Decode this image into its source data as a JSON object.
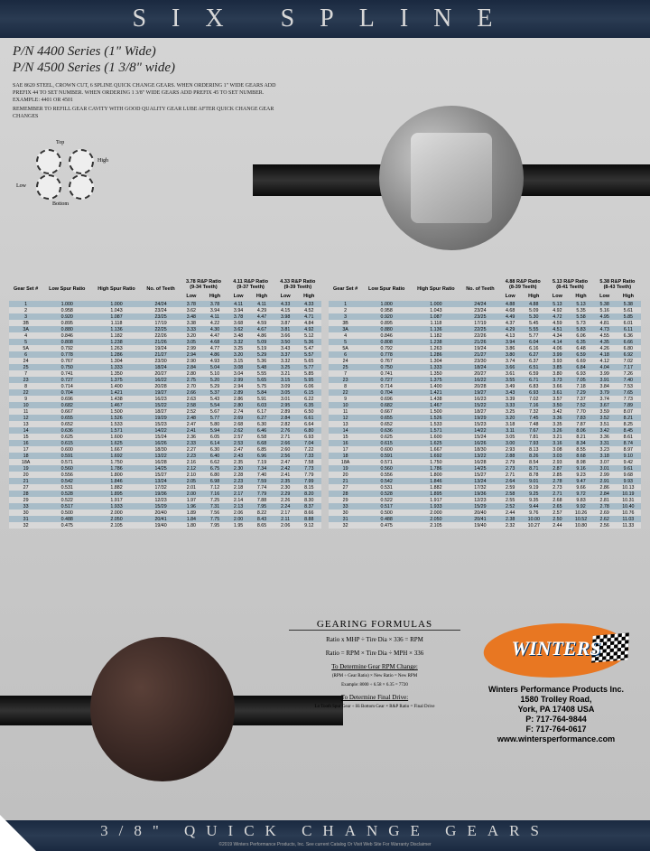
{
  "top_banner": "SIX SPLINE",
  "header": {
    "l1": "P/N 4400 Series (1\" Wide)",
    "l2": "P/N 4500 Series (1 3/8\" wide)"
  },
  "desc": {
    "p1": "SAE 8620 Steel, Crown Cut, 6 Spline Quick Change Gears. When Ordering 1\" Wide Gears Add Prefix 44 To Set Number. When Ordering 1 3/8\" Wide Gears Add Prefix 45 To Set Number. Example: 4401 or 4501",
    "p2": "Remember To Refill Gear Cavity With Good Quality Gear Lube After Quick Change Gear Changes"
  },
  "diag": {
    "top": "Top",
    "bottom": "Bottom",
    "high": "High",
    "low": "Low"
  },
  "left_table": {
    "row_hdrs": [
      "Gear Set #",
      "Low Spur Ratio",
      "High Spur Ratio",
      "No. of Teeth"
    ],
    "ratio_hdrs": [
      {
        "t": "3.78 R&P Ratio",
        "s": "(9-34 Teeth)"
      },
      {
        "t": "4.11 R&P Ratio",
        "s": "(9-37 Teeth)"
      },
      {
        "t": "4.33 R&P Ratio",
        "s": "(9-39 Teeth)"
      }
    ],
    "lh": "Low",
    "hh": "High"
  },
  "right_table": {
    "row_hdrs": [
      "Gear Set #",
      "Low Spur Ratio",
      "High Spur Ratio",
      "No. of Teeth"
    ],
    "ratio_hdrs": [
      {
        "t": "4.88 R&P Ratio",
        "s": "(8-39 Teeth)"
      },
      {
        "t": "5.13 R&P Ratio",
        "s": "(8-41 Teeth)"
      },
      {
        "t": "5.38 R&P Ratio",
        "s": "(8-43 Teeth)"
      }
    ],
    "lh": "Low",
    "hh": "High"
  },
  "rows_left": [
    [
      "1",
      "1.000",
      "1.000",
      "24/24",
      "3.78",
      "3.78",
      "4.11",
      "4.11",
      "4.33",
      "4.33"
    ],
    [
      "2",
      "0.958",
      "1.043",
      "23/24",
      "3.62",
      "3.94",
      "3.94",
      "4.29",
      "4.15",
      "4.52"
    ],
    [
      "3",
      "0.920",
      "1.087",
      "23/25",
      "3.48",
      "4.11",
      "3.78",
      "4.47",
      "3.98",
      "4.71"
    ],
    [
      "3B",
      "0.895",
      "1.118",
      "17/19",
      "3.38",
      "4.22",
      "3.68",
      "4.59",
      "3.87",
      "4.84"
    ],
    [
      "3A",
      "0.880",
      "1.136",
      "22/25",
      "3.33",
      "4.30",
      "3.62",
      "4.67",
      "3.81",
      "4.92"
    ],
    [
      "4",
      "0.846",
      "1.182",
      "22/26",
      "3.20",
      "4.47",
      "3.48",
      "4.86",
      "3.66",
      "5.12"
    ],
    [
      "5",
      "0.808",
      "1.238",
      "21/26",
      "3.05",
      "4.68",
      "3.32",
      "5.09",
      "3.50",
      "5.36"
    ],
    [
      "5A",
      "0.792",
      "1.263",
      "19/24",
      "2.99",
      "4.77",
      "3.25",
      "5.19",
      "3.43",
      "5.47"
    ],
    [
      "6",
      "0.778",
      "1.286",
      "21/27",
      "2.94",
      "4.86",
      "3.20",
      "5.29",
      "3.37",
      "5.57"
    ],
    [
      "24",
      "0.767",
      "1.304",
      "23/30",
      "2.90",
      "4.93",
      "3.15",
      "5.36",
      "3.32",
      "5.65"
    ],
    [
      "25",
      "0.750",
      "1.333",
      "18/24",
      "2.84",
      "5.04",
      "3.08",
      "5.48",
      "3.25",
      "5.77"
    ],
    [
      "7",
      "0.741",
      "1.350",
      "20/27",
      "2.80",
      "5.10",
      "3.04",
      "5.55",
      "3.21",
      "5.85"
    ],
    [
      "23",
      "0.727",
      "1.375",
      "16/22",
      "2.75",
      "5.20",
      "2.99",
      "5.65",
      "3.15",
      "5.95"
    ],
    [
      "8",
      "0.714",
      "1.400",
      "20/28",
      "2.70",
      "5.29",
      "2.94",
      "5.75",
      "3.09",
      "6.06"
    ],
    [
      "22",
      "0.704",
      "1.421",
      "19/27",
      "2.66",
      "5.37",
      "2.89",
      "5.84",
      "3.05",
      "6.15"
    ],
    [
      "9",
      "0.696",
      "1.438",
      "16/23",
      "2.63",
      "5.43",
      "2.86",
      "5.91",
      "3.01",
      "6.22"
    ],
    [
      "10",
      "0.682",
      "1.467",
      "15/22",
      "2.58",
      "5.54",
      "2.80",
      "6.03",
      "2.95",
      "6.35"
    ],
    [
      "11",
      "0.667",
      "1.500",
      "18/27",
      "2.52",
      "5.67",
      "2.74",
      "6.17",
      "2.89",
      "6.50"
    ],
    [
      "12",
      "0.655",
      "1.526",
      "19/29",
      "2.48",
      "5.77",
      "2.69",
      "6.27",
      "2.84",
      "6.61"
    ],
    [
      "13",
      "0.652",
      "1.533",
      "15/23",
      "2.47",
      "5.80",
      "2.68",
      "6.30",
      "2.82",
      "6.64"
    ],
    [
      "14",
      "0.636",
      "1.571",
      "14/22",
      "2.41",
      "5.94",
      "2.62",
      "6.46",
      "2.76",
      "6.80"
    ],
    [
      "15",
      "0.625",
      "1.600",
      "15/24",
      "2.36",
      "6.05",
      "2.57",
      "6.58",
      "2.71",
      "6.93"
    ],
    [
      "16",
      "0.615",
      "1.625",
      "16/26",
      "2.33",
      "6.14",
      "2.53",
      "6.68",
      "2.66",
      "7.04"
    ],
    [
      "17",
      "0.600",
      "1.667",
      "18/30",
      "2.27",
      "6.30",
      "2.47",
      "6.85",
      "2.60",
      "7.22"
    ],
    [
      "18",
      "0.591",
      "1.692",
      "13/22",
      "2.23",
      "6.40",
      "2.43",
      "6.96",
      "2.56",
      "7.33"
    ],
    [
      "18A",
      "0.571",
      "1.750",
      "16/28",
      "2.16",
      "6.62",
      "2.35",
      "7.19",
      "2.47",
      "7.58"
    ],
    [
      "19",
      "0.560",
      "1.786",
      "14/25",
      "2.12",
      "6.75",
      "2.30",
      "7.34",
      "2.42",
      "7.73"
    ],
    [
      "20",
      "0.556",
      "1.800",
      "15/27",
      "2.10",
      "6.80",
      "2.28",
      "7.40",
      "2.41",
      "7.79"
    ],
    [
      "21",
      "0.542",
      "1.846",
      "13/24",
      "2.05",
      "6.98",
      "2.23",
      "7.59",
      "2.35",
      "7.99"
    ],
    [
      "27",
      "0.531",
      "1.882",
      "17/32",
      "2.01",
      "7.12",
      "2.18",
      "7.74",
      "2.30",
      "8.15"
    ],
    [
      "28",
      "0.528",
      "1.895",
      "19/36",
      "2.00",
      "7.16",
      "2.17",
      "7.79",
      "2.29",
      "8.20"
    ],
    [
      "29",
      "0.522",
      "1.917",
      "12/23",
      "1.97",
      "7.25",
      "2.14",
      "7.88",
      "2.26",
      "8.30"
    ],
    [
      "33",
      "0.517",
      "1.933",
      "15/29",
      "1.96",
      "7.31",
      "2.13",
      "7.95",
      "2.24",
      "8.37"
    ],
    [
      "30",
      "0.500",
      "2.000",
      "20/40",
      "1.89",
      "7.56",
      "2.06",
      "8.22",
      "2.17",
      "8.66"
    ],
    [
      "31",
      "0.488",
      "2.050",
      "20/41",
      "1.84",
      "7.75",
      "2.00",
      "8.43",
      "2.11",
      "8.88"
    ],
    [
      "32",
      "0.475",
      "2.105",
      "19/40",
      "1.80",
      "7.95",
      "1.95",
      "8.65",
      "2.06",
      "9.12"
    ]
  ],
  "rows_right": [
    [
      "1",
      "1.000",
      "1.000",
      "24/24",
      "4.88",
      "4.88",
      "5.13",
      "5.13",
      "5.38",
      "5.38"
    ],
    [
      "2",
      "0.958",
      "1.043",
      "23/24",
      "4.68",
      "5.09",
      "4.92",
      "5.35",
      "5.16",
      "5.61"
    ],
    [
      "3",
      "0.920",
      "1.087",
      "23/25",
      "4.49",
      "5.30",
      "4.72",
      "5.58",
      "4.95",
      "5.85"
    ],
    [
      "3B",
      "0.895",
      "1.118",
      "17/19",
      "4.37",
      "5.45",
      "4.59",
      "5.73",
      "4.81",
      "6.01"
    ],
    [
      "3A",
      "0.880",
      "1.136",
      "22/25",
      "4.29",
      "5.55",
      "4.51",
      "5.83",
      "4.73",
      "6.11"
    ],
    [
      "4",
      "0.846",
      "1.182",
      "22/26",
      "4.13",
      "5.77",
      "4.34",
      "6.06",
      "4.55",
      "6.36"
    ],
    [
      "5",
      "0.808",
      "1.238",
      "21/26",
      "3.94",
      "6.04",
      "4.14",
      "6.35",
      "4.35",
      "6.66"
    ],
    [
      "5A",
      "0.792",
      "1.263",
      "19/24",
      "3.86",
      "6.16",
      "4.06",
      "6.48",
      "4.26",
      "6.80"
    ],
    [
      "6",
      "0.778",
      "1.286",
      "21/27",
      "3.80",
      "6.27",
      "3.99",
      "6.59",
      "4.18",
      "6.92"
    ],
    [
      "24",
      "0.767",
      "1.304",
      "23/30",
      "3.74",
      "6.37",
      "3.93",
      "6.69",
      "4.12",
      "7.02"
    ],
    [
      "25",
      "0.750",
      "1.333",
      "18/24",
      "3.66",
      "6.51",
      "3.85",
      "6.84",
      "4.04",
      "7.17"
    ],
    [
      "7",
      "0.741",
      "1.350",
      "20/27",
      "3.61",
      "6.59",
      "3.80",
      "6.93",
      "3.99",
      "7.26"
    ],
    [
      "23",
      "0.727",
      "1.375",
      "16/22",
      "3.55",
      "6.71",
      "3.73",
      "7.05",
      "3.91",
      "7.40"
    ],
    [
      "8",
      "0.714",
      "1.400",
      "20/28",
      "3.49",
      "6.83",
      "3.66",
      "7.18",
      "3.84",
      "7.53"
    ],
    [
      "22",
      "0.704",
      "1.421",
      "19/27",
      "3.43",
      "6.93",
      "3.61",
      "7.29",
      "3.79",
      "7.65"
    ],
    [
      "9",
      "0.696",
      "1.438",
      "16/23",
      "3.39",
      "7.02",
      "3.57",
      "7.37",
      "3.74",
      "7.73"
    ],
    [
      "10",
      "0.682",
      "1.467",
      "15/22",
      "3.33",
      "7.16",
      "3.50",
      "7.52",
      "3.67",
      "7.89"
    ],
    [
      "11",
      "0.667",
      "1.500",
      "18/27",
      "3.25",
      "7.32",
      "3.42",
      "7.70",
      "3.59",
      "8.07"
    ],
    [
      "12",
      "0.655",
      "1.526",
      "19/29",
      "3.20",
      "7.45",
      "3.36",
      "7.83",
      "3.52",
      "8.21"
    ],
    [
      "13",
      "0.652",
      "1.533",
      "15/23",
      "3.18",
      "7.48",
      "3.35",
      "7.87",
      "3.51",
      "8.25"
    ],
    [
      "14",
      "0.636",
      "1.571",
      "14/22",
      "3.11",
      "7.67",
      "3.26",
      "8.06",
      "3.42",
      "8.45"
    ],
    [
      "15",
      "0.625",
      "1.600",
      "15/24",
      "3.05",
      "7.81",
      "3.21",
      "8.21",
      "3.36",
      "8.61"
    ],
    [
      "16",
      "0.615",
      "1.625",
      "16/26",
      "3.00",
      "7.93",
      "3.16",
      "8.34",
      "3.31",
      "8.74"
    ],
    [
      "17",
      "0.600",
      "1.667",
      "18/30",
      "2.93",
      "8.13",
      "3.08",
      "8.55",
      "3.23",
      "8.97"
    ],
    [
      "18",
      "0.591",
      "1.692",
      "13/22",
      "2.88",
      "8.26",
      "3.03",
      "8.68",
      "3.18",
      "9.10"
    ],
    [
      "18A",
      "0.571",
      "1.750",
      "16/28",
      "2.79",
      "8.54",
      "2.93",
      "8.98",
      "3.07",
      "9.42"
    ],
    [
      "19",
      "0.560",
      "1.786",
      "14/25",
      "2.73",
      "8.71",
      "2.87",
      "9.16",
      "3.01",
      "9.61"
    ],
    [
      "20",
      "0.556",
      "1.800",
      "15/27",
      "2.71",
      "8.78",
      "2.85",
      "9.23",
      "2.99",
      "9.68"
    ],
    [
      "21",
      "0.542",
      "1.846",
      "13/24",
      "2.64",
      "9.01",
      "2.78",
      "9.47",
      "2.91",
      "9.93"
    ],
    [
      "27",
      "0.531",
      "1.882",
      "17/32",
      "2.59",
      "9.19",
      "2.73",
      "9.66",
      "2.86",
      "10.13"
    ],
    [
      "28",
      "0.528",
      "1.895",
      "19/36",
      "2.58",
      "9.25",
      "2.71",
      "9.72",
      "2.84",
      "10.19"
    ],
    [
      "29",
      "0.522",
      "1.917",
      "12/23",
      "2.55",
      "9.35",
      "2.68",
      "9.83",
      "2.81",
      "10.31"
    ],
    [
      "33",
      "0.517",
      "1.933",
      "15/29",
      "2.52",
      "9.44",
      "2.65",
      "9.92",
      "2.78",
      "10.40"
    ],
    [
      "30",
      "0.500",
      "2.000",
      "20/40",
      "2.44",
      "9.76",
      "2.57",
      "10.26",
      "2.69",
      "10.76"
    ],
    [
      "31",
      "0.488",
      "2.050",
      "20/41",
      "2.38",
      "10.00",
      "2.50",
      "10.52",
      "2.62",
      "11.03"
    ],
    [
      "32",
      "0.475",
      "2.105",
      "19/40",
      "2.32",
      "10.27",
      "2.44",
      "10.80",
      "2.56",
      "11.33"
    ]
  ],
  "formulas": {
    "title": "GEARING FORMULAS",
    "f1": "Ratio x MHP ÷ Tire Dia × 336 = RPM",
    "f2": "Ratio = RPM × Tire Dia ÷ MPH × 336",
    "f3t": "To Determine Gear RPM Change:",
    "f3": "(RPM ÷ Gear Ratio) × New Ratio = New RPM",
    "f3e": "Example: 8000 ÷ 6.58 × 6.35 = 7720",
    "f4t": "To Determine Final Drive:",
    "f4": "Lo Tooth Spur Gear ÷ Hi Bottom Gear × R&P Ratio = Final Drive"
  },
  "company": {
    "logo": "WINTERS",
    "name": "Winters Performance Products Inc.",
    "addr1": "1580 Trolley Road,",
    "addr2": "York, PA 17408 USA",
    "phone": "P: 717-764-9844",
    "fax": "F: 717-764-0617",
    "web": "www.wintersperformance.com"
  },
  "bottom": "3/8\" QUICK CHANGE GEARS",
  "copyright": "©2019 Winters Performance Products, Inc. See current Catalog Or Visit Web Site For Warranty Disclaimer",
  "colors": {
    "r0": "#a8bcc8",
    "r1": "#d8d8d8",
    "accent": "#e87722",
    "banner": "#1a2940"
  }
}
